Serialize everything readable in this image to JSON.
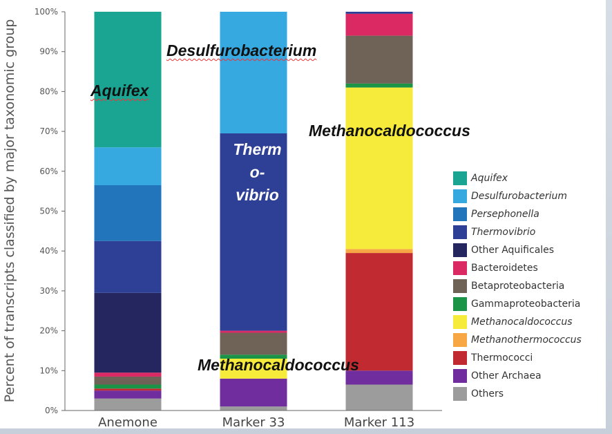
{
  "chart_data": {
    "type": "bar",
    "stacked": true,
    "ylabel": "Percent of transcripts classified by major taxonomic group",
    "ylim": [
      0,
      100
    ],
    "yticks": [
      "0%",
      "10%",
      "20%",
      "30%",
      "40%",
      "50%",
      "60%",
      "70%",
      "80%",
      "90%",
      "100%"
    ],
    "categories": [
      "Anemone",
      "Marker 33",
      "Marker 113"
    ],
    "legend_position": "right",
    "series": [
      {
        "name": "Others",
        "color": "#9c9c9c",
        "values": [
          3,
          1,
          6.5
        ]
      },
      {
        "name": "Other Archaea",
        "color": "#6f2d9e",
        "values": [
          2,
          7,
          3.5
        ]
      },
      {
        "name": "Thermococci",
        "color": "#c12a31",
        "values": [
          0.5,
          0,
          29.5
        ]
      },
      {
        "name": "Methanothermococcus",
        "color": "#f7a845",
        "values": [
          0,
          0,
          1
        ]
      },
      {
        "name": "Methanocaldococcus",
        "color": "#f6ea3a",
        "values": [
          0,
          5,
          40.5
        ]
      },
      {
        "name": "Gammaproteobacteria",
        "color": "#1c9447",
        "values": [
          1,
          1,
          1
        ]
      },
      {
        "name": "Betaproteobacteria",
        "color": "#6f6256",
        "values": [
          2,
          5.5,
          12
        ]
      },
      {
        "name": "Bacteroidetes",
        "color": "#db2a63",
        "values": [
          1,
          0.5,
          5.5
        ]
      },
      {
        "name": "Other Aquificales",
        "color": "#252560",
        "values": [
          20,
          0,
          0
        ]
      },
      {
        "name": "Thermovibrio",
        "color": "#2e3f96",
        "values": [
          13,
          49.5,
          0.5
        ]
      },
      {
        "name": "Persephonella",
        "color": "#2274bb",
        "values": [
          14,
          0,
          0
        ]
      },
      {
        "name": "Desulfurobacterium",
        "color": "#36a9e1",
        "values": [
          9.5,
          30.5,
          0
        ]
      },
      {
        "name": "Aquifex",
        "color": "#1aa593",
        "values": [
          34,
          0,
          0
        ]
      }
    ],
    "legend": [
      {
        "name": "Aquifex",
        "color": "#1aa593",
        "italic": true
      },
      {
        "name": "Desulfurobacterium",
        "color": "#36a9e1",
        "italic": true
      },
      {
        "name": "Persephonella",
        "color": "#2274bb",
        "italic": true
      },
      {
        "name": "Thermovibrio",
        "color": "#2e3f96",
        "italic": true
      },
      {
        "name": "Other Aquificales",
        "color": "#252560",
        "italic": false
      },
      {
        "name": "Bacteroidetes",
        "color": "#db2a63",
        "italic": false
      },
      {
        "name": "Betaproteobacteria",
        "color": "#6f6256",
        "italic": false
      },
      {
        "name": "Gammaproteobacteria",
        "color": "#1c9447",
        "italic": false
      },
      {
        "name": "Methanocaldococcus",
        "color": "#f6ea3a",
        "italic": true
      },
      {
        "name": "Methanothermococcus",
        "color": "#f7a845",
        "italic": true
      },
      {
        "name": "Thermococci",
        "color": "#c12a31",
        "italic": false
      },
      {
        "name": "Other Archaea",
        "color": "#6f2d9e",
        "italic": false
      },
      {
        "name": "Others",
        "color": "#9c9c9c",
        "italic": false
      }
    ],
    "annotations": {
      "aquifex": "Aquifex",
      "desulfurobacterium": "Desulfurobacterium",
      "thermovibrio_1": "Therm",
      "thermovibrio_2": "o-",
      "thermovibrio_3": "vibrio",
      "methanocaldococcus_upper": "Methanocaldococcus",
      "methanocaldococcus_lower": "Methanocaldococcus"
    }
  }
}
